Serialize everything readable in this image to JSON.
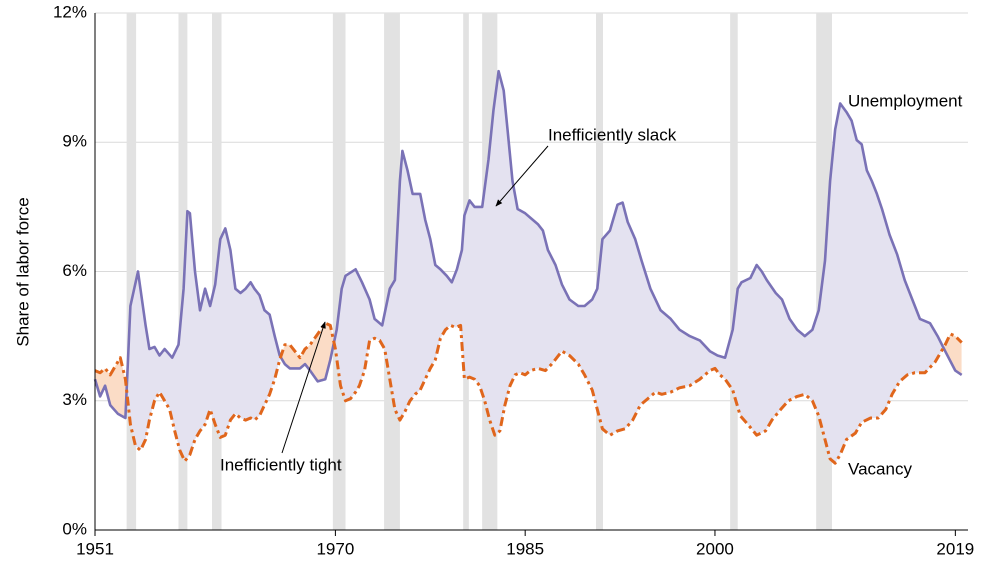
{
  "chart_data": {
    "type": "line",
    "y_label": "Share of labor force",
    "annotations": [
      "Inefficiently slack",
      "Inefficiently tight"
    ],
    "xlim": [
      1951,
      2020
    ],
    "xticks": [
      1951,
      1970,
      1985,
      2000,
      2019
    ],
    "ylim": [
      0,
      12
    ],
    "yticks": [
      {
        "value": 0,
        "label": "0%"
      },
      {
        "value": 3,
        "label": "3%"
      },
      {
        "value": 6,
        "label": "6%"
      },
      {
        "value": 9,
        "label": "9%"
      },
      {
        "value": 12,
        "label": "12%"
      }
    ],
    "grid": true,
    "recessions": [
      [
        1953.5,
        1954.25
      ],
      [
        1957.6,
        1958.3
      ],
      [
        1960.25,
        1961.0
      ],
      [
        1969.8,
        1970.8
      ],
      [
        1973.85,
        1975.1
      ],
      [
        1980.1,
        1980.55
      ],
      [
        1981.6,
        1982.8
      ],
      [
        1990.6,
        1991.15
      ],
      [
        2001.2,
        2001.8
      ],
      [
        2008.0,
        2009.25
      ]
    ],
    "recession_color": "#e2e2e2",
    "series": [
      {
        "name": "Unemployment",
        "color": "#7a72b6",
        "fill": "#e4e2f0",
        "dash": false,
        "x": [
          1951.0,
          1951.4,
          1951.8,
          1952.2,
          1952.8,
          1953.4,
          1953.8,
          1954.4,
          1955.0,
          1955.3,
          1955.7,
          1956.1,
          1956.5,
          1957.1,
          1957.6,
          1958.0,
          1958.3,
          1958.5,
          1958.9,
          1959.3,
          1959.7,
          1960.1,
          1960.5,
          1960.9,
          1961.3,
          1961.7,
          1962.1,
          1962.5,
          1962.9,
          1963.3,
          1963.6,
          1964.0,
          1964.4,
          1964.8,
          1965.2,
          1965.6,
          1966.0,
          1966.4,
          1967.2,
          1967.6,
          1968.0,
          1968.6,
          1969.2,
          1969.6,
          1970.1,
          1970.5,
          1970.8,
          1971.6,
          1972.1,
          1972.7,
          1973.1,
          1973.7,
          1974.3,
          1974.7,
          1975.1,
          1975.3,
          1975.7,
          1976.1,
          1976.7,
          1977.1,
          1977.5,
          1977.9,
          1978.3,
          1978.8,
          1979.2,
          1979.6,
          1980.0,
          1980.2,
          1980.6,
          1981.0,
          1981.6,
          1982.1,
          1982.5,
          1982.9,
          1983.3,
          1983.6,
          1984.0,
          1984.4,
          1985.0,
          1985.4,
          1986.0,
          1986.4,
          1986.8,
          1987.4,
          1987.9,
          1988.5,
          1989.2,
          1989.7,
          1990.3,
          1990.7,
          1991.1,
          1991.7,
          1992.3,
          1992.7,
          1993.1,
          1993.7,
          1994.2,
          1994.9,
          1995.7,
          1996.5,
          1997.2,
          1998.0,
          1998.8,
          1999.6,
          2000.2,
          2000.8,
          2001.4,
          2001.8,
          2002.1,
          2002.8,
          2003.3,
          2003.7,
          2004.1,
          2004.8,
          2005.3,
          2005.9,
          2006.5,
          2007.1,
          2007.7,
          2008.2,
          2008.7,
          2009.1,
          2009.5,
          2009.9,
          2010.4,
          2010.8,
          2011.2,
          2011.6,
          2012.0,
          2012.4,
          2012.8,
          2013.2,
          2013.8,
          2014.4,
          2015.0,
          2015.6,
          2016.2,
          2017.0,
          2017.6,
          2018.2,
          2019.0,
          2019.5
        ],
        "values": [
          3.5,
          3.1,
          3.35,
          2.9,
          2.7,
          2.6,
          5.2,
          6.0,
          4.75,
          4.2,
          4.25,
          4.05,
          4.2,
          4.0,
          4.3,
          5.6,
          7.4,
          7.35,
          6.0,
          5.1,
          5.6,
          5.2,
          5.7,
          6.75,
          7.0,
          6.5,
          5.6,
          5.5,
          5.6,
          5.75,
          5.6,
          5.45,
          5.1,
          5.0,
          4.5,
          4.05,
          3.85,
          3.75,
          3.75,
          3.85,
          3.7,
          3.45,
          3.5,
          3.95,
          4.65,
          5.6,
          5.9,
          6.05,
          5.75,
          5.35,
          4.9,
          4.75,
          5.6,
          5.8,
          8.1,
          8.8,
          8.35,
          7.8,
          7.8,
          7.2,
          6.75,
          6.15,
          6.05,
          5.9,
          5.75,
          6.05,
          6.5,
          7.3,
          7.65,
          7.5,
          7.5,
          8.6,
          9.75,
          10.65,
          10.2,
          9.3,
          8.1,
          7.45,
          7.35,
          7.25,
          7.1,
          6.95,
          6.5,
          6.15,
          5.7,
          5.35,
          5.2,
          5.2,
          5.35,
          5.6,
          6.75,
          6.95,
          7.55,
          7.6,
          7.15,
          6.75,
          6.25,
          5.6,
          5.1,
          4.9,
          4.65,
          4.5,
          4.4,
          4.15,
          4.05,
          4.0,
          4.65,
          5.6,
          5.75,
          5.85,
          6.15,
          6.0,
          5.8,
          5.5,
          5.35,
          4.9,
          4.65,
          4.5,
          4.65,
          5.1,
          6.25,
          8.1,
          9.3,
          9.9,
          9.7,
          9.5,
          9.05,
          8.95,
          8.35,
          8.1,
          7.8,
          7.45,
          6.85,
          6.4,
          5.8,
          5.35,
          4.9,
          4.8,
          4.5,
          4.15,
          3.7,
          3.6
        ]
      },
      {
        "name": "Vacancy",
        "color": "#e0661c",
        "fill": "#fbdcc6",
        "dash": true,
        "x": [
          1951.0,
          1951.4,
          1951.8,
          1952.2,
          1952.6,
          1953.0,
          1953.4,
          1953.8,
          1954.2,
          1954.6,
          1955.0,
          1955.3,
          1955.7,
          1956.1,
          1956.5,
          1956.9,
          1957.3,
          1957.7,
          1958.1,
          1958.5,
          1958.9,
          1959.3,
          1959.7,
          1960.1,
          1960.5,
          1960.9,
          1961.3,
          1961.7,
          1962.1,
          1962.5,
          1962.9,
          1963.3,
          1963.6,
          1964.0,
          1964.4,
          1964.8,
          1965.2,
          1965.6,
          1966.0,
          1966.4,
          1966.8,
          1967.2,
          1967.6,
          1968.0,
          1968.6,
          1969.2,
          1969.6,
          1970.0,
          1970.4,
          1970.8,
          1971.2,
          1971.6,
          1971.9,
          1972.3,
          1972.7,
          1973.1,
          1973.5,
          1973.9,
          1974.3,
          1974.7,
          1975.1,
          1975.5,
          1975.9,
          1976.3,
          1976.7,
          1977.1,
          1977.5,
          1977.9,
          1978.3,
          1978.7,
          1979.1,
          1979.5,
          1979.9,
          1980.2,
          1980.6,
          1981.0,
          1981.4,
          1981.8,
          1982.2,
          1982.6,
          1983.0,
          1983.4,
          1983.8,
          1984.2,
          1984.6,
          1985.0,
          1985.4,
          1986.0,
          1986.6,
          1987.1,
          1987.5,
          1987.9,
          1988.5,
          1989.2,
          1989.7,
          1990.3,
          1990.7,
          1991.1,
          1991.7,
          1992.3,
          1992.9,
          1993.5,
          1994.1,
          1994.7,
          1995.3,
          1995.8,
          1996.5,
          1997.2,
          1998.0,
          1998.8,
          1999.6,
          2000.0,
          2000.4,
          2000.8,
          2001.4,
          2002.0,
          2002.6,
          2003.3,
          2004.0,
          2004.5,
          2005.2,
          2005.8,
          2006.5,
          2007.1,
          2007.7,
          2008.2,
          2008.7,
          2009.1,
          2009.5,
          2009.9,
          2010.4,
          2011.1,
          2011.6,
          2012.3,
          2012.9,
          2013.5,
          2014.0,
          2014.6,
          2015.2,
          2015.8,
          2016.6,
          2017.4,
          2018.2,
          2018.6,
          2019.0,
          2019.5
        ],
        "values": [
          3.7,
          3.65,
          3.75,
          3.6,
          3.8,
          4.0,
          3.5,
          2.45,
          1.95,
          1.85,
          2.1,
          2.55,
          3.0,
          3.2,
          3.0,
          2.8,
          2.3,
          1.85,
          1.6,
          1.75,
          2.1,
          2.3,
          2.45,
          2.8,
          2.45,
          2.15,
          2.2,
          2.55,
          2.7,
          2.6,
          2.55,
          2.6,
          2.55,
          2.65,
          2.9,
          3.15,
          3.5,
          3.95,
          4.3,
          4.3,
          4.15,
          4.0,
          4.2,
          4.3,
          4.55,
          4.8,
          4.75,
          4.2,
          3.35,
          3.0,
          3.05,
          3.2,
          3.35,
          3.7,
          4.4,
          4.45,
          4.4,
          4.2,
          3.5,
          2.8,
          2.55,
          2.75,
          3.0,
          3.15,
          3.25,
          3.5,
          3.75,
          3.95,
          4.45,
          4.65,
          4.75,
          4.7,
          4.75,
          3.5,
          3.55,
          3.5,
          3.35,
          3.0,
          2.55,
          2.2,
          2.3,
          2.9,
          3.35,
          3.6,
          3.65,
          3.6,
          3.7,
          3.75,
          3.7,
          3.85,
          4.0,
          4.15,
          4.05,
          3.85,
          3.6,
          3.25,
          2.8,
          2.35,
          2.2,
          2.3,
          2.35,
          2.55,
          2.9,
          3.05,
          3.2,
          3.15,
          3.2,
          3.3,
          3.35,
          3.5,
          3.7,
          3.75,
          3.6,
          3.5,
          3.25,
          2.65,
          2.45,
          2.2,
          2.3,
          2.55,
          2.8,
          3.0,
          3.1,
          3.15,
          3.0,
          2.65,
          2.1,
          1.65,
          1.55,
          1.75,
          2.1,
          2.25,
          2.5,
          2.6,
          2.6,
          2.8,
          3.15,
          3.45,
          3.6,
          3.65,
          3.65,
          3.9,
          4.3,
          4.55,
          4.5,
          4.35
        ]
      }
    ]
  }
}
